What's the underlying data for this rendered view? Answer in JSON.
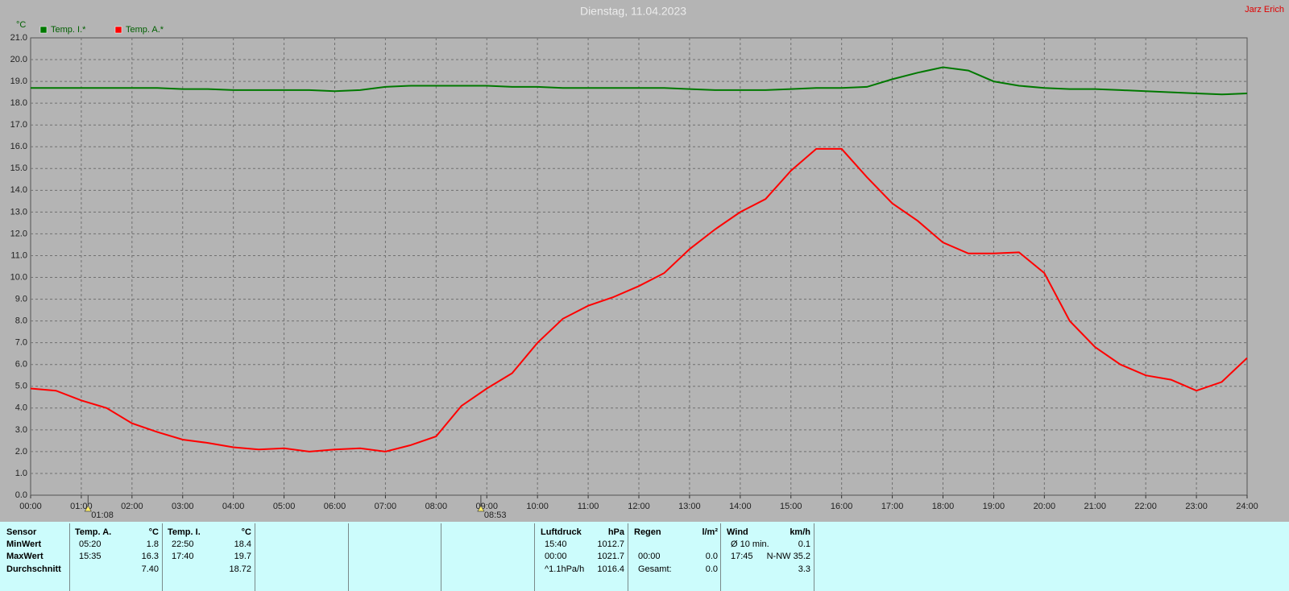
{
  "chart_data": {
    "type": "line",
    "title": "Dienstag, 11.04.2023",
    "author": "Jarz Erich",
    "y_label": "°C",
    "x": [
      0,
      0.5,
      1,
      1.5,
      2,
      2.5,
      3,
      3.5,
      4,
      4.5,
      5,
      5.5,
      6,
      6.5,
      7,
      7.5,
      8,
      8.5,
      9,
      9.5,
      10,
      10.5,
      11,
      11.5,
      12,
      12.5,
      13,
      13.5,
      14,
      14.5,
      15,
      15.5,
      16,
      16.5,
      17,
      17.5,
      18,
      18.5,
      19,
      19.5,
      20,
      20.5,
      21,
      21.5,
      22,
      22.5,
      23,
      23.5,
      24
    ],
    "series": [
      {
        "name": "Temp. I.*",
        "color": "#007800",
        "values": [
          18.7,
          18.7,
          18.7,
          18.7,
          18.7,
          18.7,
          18.65,
          18.65,
          18.6,
          18.6,
          18.6,
          18.6,
          18.55,
          18.6,
          18.75,
          18.8,
          18.8,
          18.8,
          18.8,
          18.75,
          18.75,
          18.7,
          18.7,
          18.7,
          18.7,
          18.7,
          18.65,
          18.6,
          18.6,
          18.6,
          18.65,
          18.7,
          18.7,
          18.75,
          19.1,
          19.4,
          19.65,
          19.5,
          19.0,
          18.8,
          18.7,
          18.65,
          18.65,
          18.6,
          18.55,
          18.5,
          18.45,
          18.4,
          18.45
        ]
      },
      {
        "name": "Temp. A.*",
        "color": "#ff0000",
        "values": [
          4.9,
          4.8,
          4.35,
          4.0,
          3.3,
          2.9,
          2.55,
          2.4,
          2.2,
          2.1,
          2.15,
          2.0,
          2.1,
          2.15,
          2.0,
          2.3,
          2.7,
          4.1,
          4.9,
          5.6,
          7.0,
          8.1,
          8.7,
          9.1,
          9.6,
          10.2,
          11.3,
          12.2,
          13.0,
          13.6,
          14.9,
          15.9,
          15.9,
          14.6,
          13.4,
          12.6,
          11.6,
          11.1,
          11.1,
          11.15,
          10.2,
          8.0,
          6.8,
          6.0,
          5.5,
          5.3,
          4.8,
          5.2,
          6.3
        ]
      }
    ],
    "xlim": [
      0,
      24
    ],
    "xticks": [
      {
        "value": 0,
        "label": "00:00"
      },
      {
        "value": 1,
        "label": "01:00"
      },
      {
        "value": 2,
        "label": "02:00"
      },
      {
        "value": 3,
        "label": "03:00"
      },
      {
        "value": 4,
        "label": "04:00"
      },
      {
        "value": 5,
        "label": "05:00"
      },
      {
        "value": 6,
        "label": "06:00"
      },
      {
        "value": 7,
        "label": "07:00"
      },
      {
        "value": 8,
        "label": "08:00"
      },
      {
        "value": 9,
        "label": "09:00"
      },
      {
        "value": 10,
        "label": "10:00"
      },
      {
        "value": 11,
        "label": "11:00"
      },
      {
        "value": 12,
        "label": "12:00"
      },
      {
        "value": 13,
        "label": "13:00"
      },
      {
        "value": 14,
        "label": "14:00"
      },
      {
        "value": 15,
        "label": "15:00"
      },
      {
        "value": 16,
        "label": "16:00"
      },
      {
        "value": 17,
        "label": "17:00"
      },
      {
        "value": 18,
        "label": "18:00"
      },
      {
        "value": 19,
        "label": "19:00"
      },
      {
        "value": 20,
        "label": "20:00"
      },
      {
        "value": 21,
        "label": "21:00"
      },
      {
        "value": 22,
        "label": "22:00"
      },
      {
        "value": 23,
        "label": "23:00"
      },
      {
        "value": 24,
        "label": "24:00"
      }
    ],
    "ylim": [
      0,
      21
    ],
    "yticks": [
      {
        "value": 0,
        "label": "0.0"
      },
      {
        "value": 1,
        "label": "1.0"
      },
      {
        "value": 2,
        "label": "2.0"
      },
      {
        "value": 3,
        "label": "3.0"
      },
      {
        "value": 4,
        "label": "4.0"
      },
      {
        "value": 5,
        "label": "5.0"
      },
      {
        "value": 6,
        "label": "6.0"
      },
      {
        "value": 7,
        "label": "7.0"
      },
      {
        "value": 8,
        "label": "8.0"
      },
      {
        "value": 9,
        "label": "9.0"
      },
      {
        "value": 10,
        "label": "10.0"
      },
      {
        "value": 11,
        "label": "11.0"
      },
      {
        "value": 12,
        "label": "12.0"
      },
      {
        "value": 13,
        "label": "13.0"
      },
      {
        "value": 14,
        "label": "14.0"
      },
      {
        "value": 15,
        "label": "15.0"
      },
      {
        "value": 16,
        "label": "16.0"
      },
      {
        "value": 17,
        "label": "17.0"
      },
      {
        "value": 18,
        "label": "18.0"
      },
      {
        "value": 19,
        "label": "19.0"
      },
      {
        "value": 20,
        "label": "20.0"
      },
      {
        "value": 21,
        "label": "21.0"
      }
    ],
    "grid": true,
    "annotations": [
      {
        "x": 1.1333,
        "label": "01:08"
      },
      {
        "x": 8.8833,
        "label": "08:53"
      }
    ]
  },
  "table": {
    "header": "Sensor",
    "row_labels": [
      "MinWert",
      "MaxWert",
      "Durchschnitt"
    ],
    "blocks": [
      {
        "title": "Temp. A.",
        "unit": "°C",
        "rows": [
          {
            "time": "05:20",
            "value": "1.8"
          },
          {
            "time": "15:35",
            "value": "16.3"
          },
          {
            "value": "7.40"
          }
        ]
      },
      {
        "title": "Temp. I.",
        "unit": "°C",
        "rows": [
          {
            "time": "22:50",
            "value": "18.4"
          },
          {
            "time": "17:40",
            "value": "19.7"
          },
          {
            "value": "18.72"
          }
        ]
      },
      {
        "title": "Luftdruck",
        "unit": "hPa",
        "rows": [
          {
            "time": "15:40",
            "value": "1012.7"
          },
          {
            "time": "00:00",
            "value": "1021.7"
          },
          {
            "time": "^1.1hPa/h",
            "value": "1016.4"
          }
        ]
      },
      {
        "title": "Regen",
        "unit": "l/m²",
        "rows": [
          null,
          {
            "time": "00:00",
            "value": "0.0"
          },
          {
            "time": "Gesamt:",
            "value": "0.0"
          }
        ]
      },
      {
        "title": "Wind",
        "unit": "km/h",
        "rows": [
          {
            "time": "Ø 10 min.",
            "value": "0.1"
          },
          {
            "time": "17:45",
            "value": "N-NW 35.2"
          },
          {
            "value": "3.3"
          }
        ]
      }
    ]
  }
}
